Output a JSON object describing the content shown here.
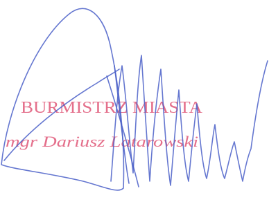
{
  "stamp": {
    "title": "BURMISTRZ MIASTA",
    "name": "mgr Dariusz Latarowski"
  }
}
